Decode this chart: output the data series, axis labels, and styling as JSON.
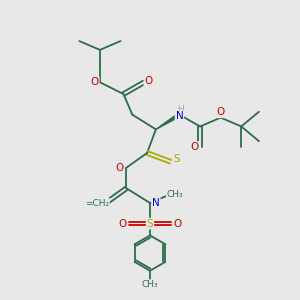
{
  "background_color": "#e8e8e8",
  "bond_color": "#2d6b4a",
  "bond_width": 1.3,
  "atom_colors": {
    "C": "#2d6b4a",
    "H": "#8ab8a0",
    "N": "#0000cc",
    "O": "#cc0000",
    "S": "#aaaa00"
  },
  "font_size": 7.5,
  "xlim": [
    0,
    10
  ],
  "ylim": [
    0,
    10
  ],
  "figsize": [
    3.0,
    3.0
  ],
  "dpi": 100
}
